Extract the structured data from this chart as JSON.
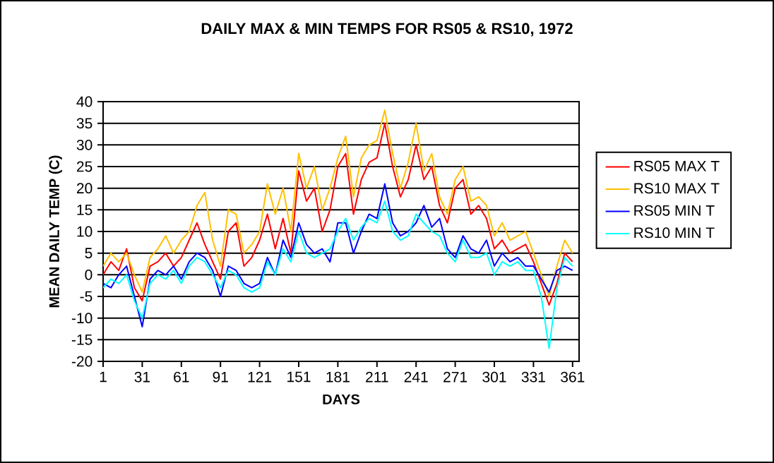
{
  "chart_data": {
    "type": "line",
    "title": "DAILY MAX & MIN TEMPS FOR RS05 & RS10, 1972",
    "xlabel": "DAYS",
    "ylabel": "MEAN DAILY TEMP (C)",
    "x": [
      1,
      7,
      13,
      19,
      25,
      31,
      37,
      43,
      49,
      55,
      61,
      67,
      73,
      79,
      85,
      91,
      97,
      103,
      109,
      115,
      121,
      127,
      133,
      139,
      145,
      151,
      157,
      163,
      169,
      175,
      181,
      187,
      193,
      199,
      205,
      211,
      217,
      223,
      229,
      235,
      241,
      247,
      253,
      259,
      265,
      271,
      277,
      283,
      289,
      295,
      301,
      307,
      313,
      319,
      325,
      331,
      337,
      343,
      349,
      355,
      361
    ],
    "series": [
      {
        "name": "RS05 MAX T",
        "color": "#ff0000",
        "values": [
          0,
          3,
          1,
          6,
          -3,
          -6,
          2,
          3,
          5,
          2,
          4,
          8,
          12,
          7,
          3,
          -1,
          10,
          12,
          2,
          4,
          8,
          14,
          6,
          13,
          5,
          24,
          17,
          20,
          10,
          15,
          25,
          28,
          14,
          22,
          26,
          27,
          35,
          25,
          18,
          22,
          30,
          22,
          25,
          16,
          12,
          20,
          22,
          14,
          16,
          13,
          6,
          8,
          5,
          6,
          7,
          3,
          -2,
          -7,
          -2,
          5,
          3
        ]
      },
      {
        "name": "RS10 MAX T",
        "color": "#ffc000",
        "values": [
          2,
          5,
          3,
          5,
          0,
          -4,
          4,
          6,
          9,
          5,
          8,
          10,
          16,
          19,
          8,
          2,
          15,
          14,
          5,
          7,
          10,
          21,
          14,
          20,
          10,
          28,
          20,
          25,
          15,
          20,
          27,
          32,
          18,
          27,
          30,
          31,
          38,
          28,
          20,
          26,
          35,
          24,
          28,
          18,
          14,
          22,
          25,
          17,
          18,
          16,
          9,
          12,
          8,
          9,
          10,
          5,
          0,
          -5,
          2,
          8,
          5
        ]
      },
      {
        "name": "RS05 MIN T",
        "color": "#0000ff",
        "values": [
          -2,
          -3,
          0,
          2,
          -5,
          -12,
          -1,
          1,
          0,
          2,
          -1,
          3,
          5,
          4,
          1,
          -5,
          2,
          1,
          -2,
          -3,
          -2,
          4,
          0,
          8,
          4,
          12,
          7,
          5,
          6,
          3,
          12,
          12,
          5,
          10,
          14,
          13,
          21,
          12,
          9,
          10,
          12,
          16,
          11,
          13,
          6,
          4,
          9,
          6,
          5,
          8,
          2,
          5,
          3,
          4,
          2,
          2,
          -1,
          -4,
          1,
          2,
          1
        ]
      },
      {
        "name": "RS10 MIN T",
        "color": "#00ffff",
        "values": [
          -3,
          -1,
          -2,
          0,
          -6,
          -10,
          -2,
          0,
          -1,
          1,
          -2,
          2,
          4,
          3,
          0,
          -3,
          1,
          0,
          -3,
          -4,
          -3,
          3,
          0,
          6,
          3,
          10,
          5,
          4,
          5,
          6,
          10,
          13,
          8,
          11,
          13,
          12,
          17,
          10,
          8,
          9,
          14,
          12,
          10,
          9,
          5,
          3,
          8,
          4,
          4,
          5,
          0,
          3,
          2,
          3,
          1,
          1,
          -5,
          -17,
          -3,
          4,
          2
        ]
      }
    ],
    "xlim": [
      1,
      366
    ],
    "xticks": [
      1,
      31,
      61,
      91,
      121,
      151,
      181,
      211,
      241,
      271,
      301,
      331,
      361
    ],
    "ylim": [
      -20,
      40
    ],
    "yticks": [
      -20,
      -15,
      -10,
      -5,
      0,
      5,
      10,
      15,
      20,
      25,
      30,
      35,
      40
    ],
    "grid": "y",
    "legend": "right",
    "marker": "none",
    "line_style": "solid"
  }
}
